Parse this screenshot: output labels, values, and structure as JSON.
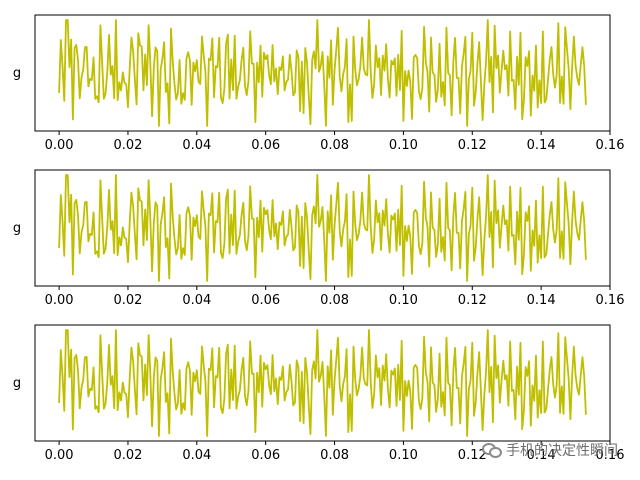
{
  "watermark": {
    "text": "手机的决定性瞬间",
    "icon": "wechat-bubble-icon"
  },
  "colors": {
    "line": "#bfbf00",
    "axes": "#000000",
    "background": "#ffffff"
  },
  "chart_data": [
    {
      "type": "line",
      "ylabel": "g",
      "xticks": [
        "0.00",
        "0.02",
        "0.04",
        "0.06",
        "0.08",
        "0.10",
        "0.12",
        "0.14",
        "0.16"
      ],
      "xlim": [
        -0.007,
        0.16
      ],
      "ylim": [
        -1.15,
        1.15
      ],
      "x_range": [
        0,
        0.153
      ],
      "samples": 307,
      "grid": false,
      "yticks_shown": false,
      "series": [
        {
          "color": "#bfbf00",
          "x_start": 0.0,
          "x_step": 0.0005,
          "values_note": "oscillating signal, peaks near x≈0.002, 0.004, 0.032, 0.075"
        }
      ]
    },
    {
      "type": "line",
      "ylabel": "g",
      "xticks": [
        "0.00",
        "0.02",
        "0.04",
        "0.06",
        "0.08",
        "0.10",
        "0.12",
        "0.14",
        "0.16"
      ],
      "xlim": [
        -0.007,
        0.16
      ],
      "ylim": [
        -1.15,
        1.15
      ],
      "x_range": [
        0,
        0.153
      ],
      "samples": 307,
      "grid": false,
      "yticks_shown": false,
      "series": [
        {
          "color": "#bfbf00",
          "x_start": 0.0,
          "x_step": 0.0005,
          "values_note": "same signal as first subplot"
        }
      ]
    },
    {
      "type": "line",
      "ylabel": "g",
      "xticks": [
        "0.00",
        "0.02",
        "0.04",
        "0.06",
        "0.08",
        "0.10",
        "0.12",
        "0.14",
        "0.16"
      ],
      "xlim": [
        -0.007,
        0.16
      ],
      "ylim": [
        -1.15,
        1.15
      ],
      "x_range": [
        0,
        0.153
      ],
      "samples": 307,
      "grid": false,
      "yticks_shown": false,
      "series": [
        {
          "color": "#bfbf00",
          "x_start": 0.0,
          "x_step": 0.0005,
          "values_note": "same signal as first subplot"
        }
      ]
    }
  ]
}
